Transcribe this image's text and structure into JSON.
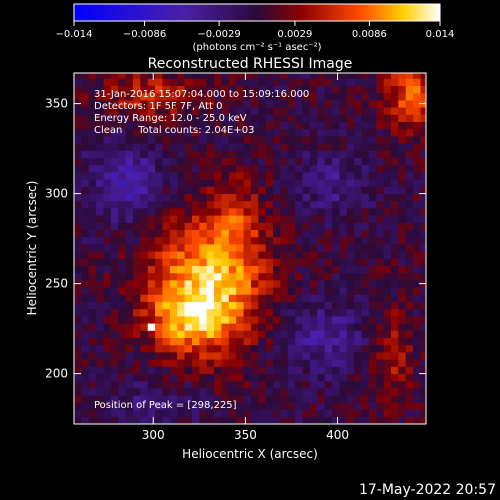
{
  "colorbar": {
    "tick_labels": [
      "−0.014",
      "−0.0086",
      "−0.0029",
      "0.0029",
      "0.0086",
      "0.014"
    ],
    "tick_values": [
      -0.014,
      -0.0086,
      -0.0029,
      0.0029,
      0.0086,
      0.014
    ],
    "range": [
      -0.014,
      0.014
    ],
    "units_label": "(photons cm⁻² s⁻¹ asec⁻²)"
  },
  "chart_data": {
    "type": "heatmap",
    "title": "Reconstructed RHESSI Image",
    "xlabel": "Heliocentric X (arcsec)",
    "ylabel": "Heliocentric Y (arcsec)",
    "xlim": [
      257,
      448
    ],
    "ylim": [
      172,
      367
    ],
    "x_ticks": [
      300,
      350,
      400
    ],
    "y_ticks": [
      200,
      250,
      300,
      350
    ],
    "colormap": "blue-purple-red-yellow-white",
    "source_center": [
      329,
      248
    ],
    "peak_position": [
      298,
      225
    ],
    "annotations": [
      "31-Jan-2016 15:07:04.000 to 15:09:16.000",
      "Detectors: 1F 5F 7F, Att 0",
      "Energy Range: 12.0 - 25.0 keV",
      "Clean     Total counts: 2.04E+03"
    ],
    "peak_text": "Position of Peak = [298,225]"
  },
  "footer": {
    "date": "17-May-2022 20:57"
  }
}
